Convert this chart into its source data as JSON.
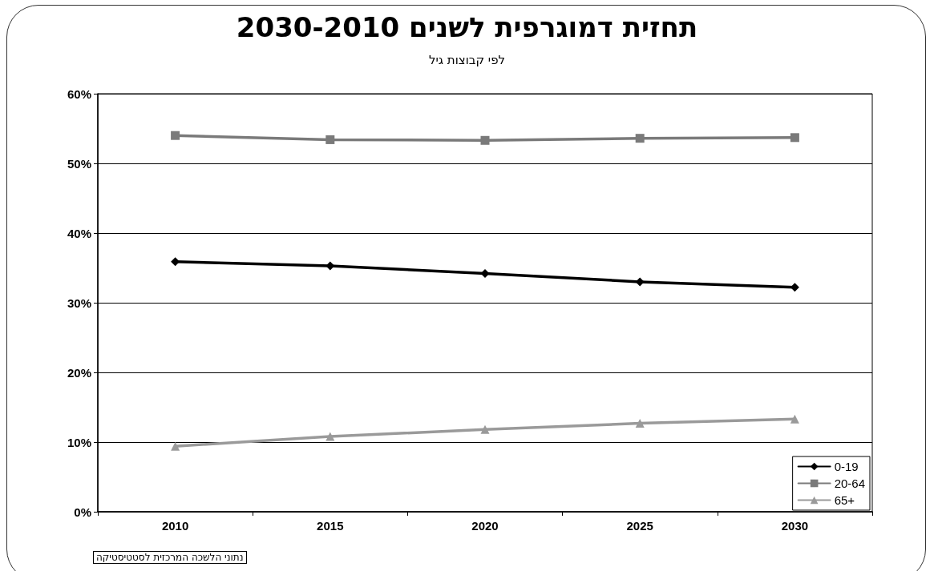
{
  "chart_data": {
    "type": "line",
    "title": "תחזית דמוגרפית לשנים 2030-2010",
    "subtitle": "לפי קבוצות גיל",
    "annotations": [
      "נתוני הלשכה המרכזית לסטטיסטיקה"
    ],
    "categories": [
      "2010",
      "2015",
      "2020",
      "2025",
      "2030"
    ],
    "series": [
      {
        "name": "0-19",
        "color": "#000000",
        "marker": "diamond",
        "values": [
          35.9,
          35.3,
          34.2,
          33.0,
          32.2
        ]
      },
      {
        "name": "20-64",
        "color": "#7a7a7a",
        "marker": "square",
        "values": [
          54.0,
          53.4,
          53.3,
          53.6,
          53.7
        ]
      },
      {
        "name": "65+",
        "color": "#9a9a9a",
        "marker": "triangle",
        "values": [
          9.4,
          10.8,
          11.8,
          12.7,
          13.3
        ]
      }
    ],
    "ylim": [
      0,
      60
    ],
    "yticks": [
      {
        "value": 0,
        "label": "0%"
      },
      {
        "value": 10,
        "label": "10%"
      },
      {
        "value": 20,
        "label": "20%"
      },
      {
        "value": 30,
        "label": "30%"
      },
      {
        "value": 40,
        "label": "40%"
      },
      {
        "value": 50,
        "label": "50%"
      },
      {
        "value": 60,
        "label": "60%"
      }
    ],
    "grid": "y",
    "legend": "bottom right",
    "line_style": "solid"
  }
}
